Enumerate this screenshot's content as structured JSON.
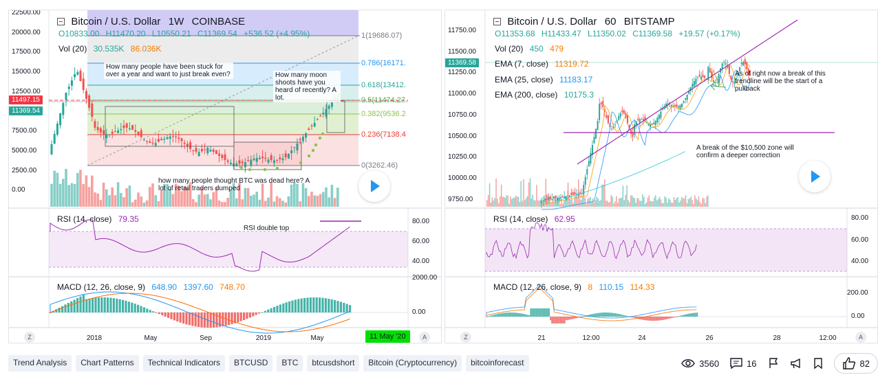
{
  "left": {
    "title": "Bitcoin / U.S. Dollar",
    "interval": "1W",
    "exchange": "COINBASE",
    "ohlc": {
      "o": "O10833.00",
      "h": "H11470.20",
      "l": "L10550.21",
      "c": "C11369.54",
      "chg": "+536.52 (+4.95%)"
    },
    "vol_label": "Vol (20)",
    "vol_v1": "30.535K",
    "vol_v2": "86.036K",
    "fib": [
      {
        "label": "1(19686.07)",
        "color": "#787b86"
      },
      {
        "label": "0.786(16171.",
        "color": "#2196f3"
      },
      {
        "label": "0.618(13412.",
        "color": "#26a69a"
      },
      {
        "label": "0.5(11474.27",
        "color": "#4caf50"
      },
      {
        "label": "0.382(9536.2",
        "color": "#8bc34a"
      },
      {
        "label": "0.236(7138.4",
        "color": "#e53935"
      },
      {
        "label": "0(3262.46)",
        "color": "#787b86"
      }
    ],
    "price_axis": [
      "22500.00",
      "20000.00",
      "17500.00",
      "15000.00",
      "12500.00",
      "10000.00",
      "7500.00",
      "5000.00",
      "2500.00",
      "0.00"
    ],
    "price_pill_red": "11497.15",
    "price_pill_green": "11369.54",
    "notes": [
      "How many people have been stuck for over a year and want to just break even?",
      "How many moon shoots have you heard of recently? A lot.",
      "how many people thought BTC was dead here? A lot of retail traders dumped",
      "RSI double top"
    ],
    "rsi_label": "RSI (14, close)",
    "rsi_val": "79.35",
    "rsi_axis": [
      "80.00",
      "60.00",
      "40.00"
    ],
    "macd_label": "MACD (12, 26, close, 9)",
    "macd_v1": "648.90",
    "macd_v2": "1397.60",
    "macd_v3": "748.70",
    "macd_axis": [
      "2000.00",
      "0.00"
    ],
    "x_axis": [
      "2018",
      "May",
      "Sep",
      "2019",
      "May"
    ],
    "date_pill": "11 May '20",
    "corner_left": "Z",
    "corner_right": "A"
  },
  "right": {
    "title": "Bitcoin / U.S. Dollar",
    "interval": "60",
    "exchange": "BITSTAMP",
    "ohlc": {
      "o": "O11353.68",
      "h": "H11433.47",
      "l": "L11350.02",
      "c": "C11369.58",
      "chg": "+19.57 (+0.17%)"
    },
    "vol_label": "Vol (20)",
    "vol_v1": "450",
    "vol_v2": "479",
    "ema": [
      {
        "label": "EMA (7, close)",
        "val": "11319.72",
        "color": "#f57c00"
      },
      {
        "label": "EMA (25, close)",
        "val": "11183.17",
        "color": "#2196f3"
      },
      {
        "label": "EMA (200, close)",
        "val": "10175.3",
        "color": "#26a69a"
      }
    ],
    "price_axis": [
      "11750.00",
      "11500.00",
      "11250.00",
      "11000.00",
      "10750.00",
      "10500.00",
      "10250.00",
      "10000.00",
      "9750.00"
    ],
    "price_pill": "11369.58",
    "notes": [
      "As of right now a break of this trendline will be the start of a pullback",
      "A break of the $10,500 zone will confirm a deeper correction"
    ],
    "rsi_label": "RSI (14, close)",
    "rsi_val": "62.95",
    "rsi_axis": [
      "80.00",
      "60.00",
      "40.00"
    ],
    "macd_label": "MACD (12, 26, close, 9)",
    "macd_v1": "8",
    "macd_v2": "110.15",
    "macd_v3": "114.33",
    "macd_axis": [
      "200.00",
      "0.00"
    ],
    "x_axis": [
      "21",
      "12:00",
      "24",
      "26",
      "28",
      "12:00"
    ],
    "corner_left": "Z",
    "corner_right": "A"
  },
  "tags": [
    "Trend Analysis",
    "Chart Patterns",
    "Technical Indicators",
    "BTCUSD",
    "BTC",
    "btcusdshort",
    "Bitcoin (Cryptocurrency)",
    "bitcoinforecast"
  ],
  "stats": {
    "views": "3560",
    "comments": "16",
    "likes": "82"
  }
}
